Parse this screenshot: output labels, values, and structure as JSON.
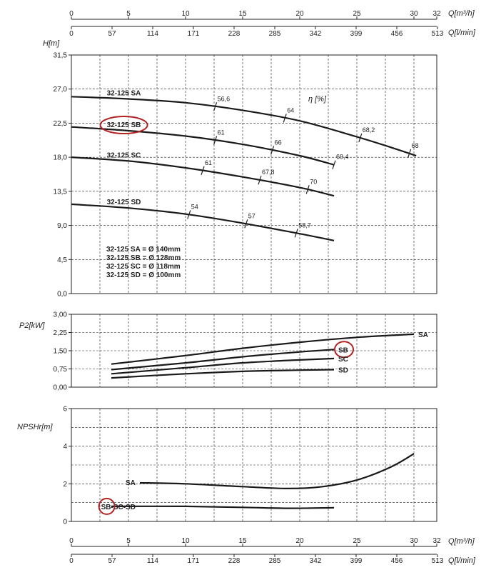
{
  "chart_data": {
    "type": "line",
    "axes": {
      "q_m3h": {
        "label": "Q[m³/h]",
        "ticks": [
          "0",
          "5",
          "10",
          "15",
          "20",
          "25",
          "30",
          "32"
        ]
      },
      "q_lmin": {
        "label": "Q[l/min]",
        "ticks": [
          "0",
          "57",
          "114",
          "171",
          "228",
          "285",
          "342",
          "399",
          "456",
          "513"
        ]
      }
    },
    "charts": [
      {
        "id": "head",
        "type": "line",
        "ylabel": "H[m]",
        "ylim": [
          0,
          31.5
        ],
        "yticks": [
          "0,0",
          "4,5",
          "9,0",
          "13,5",
          "18,0",
          "22,5",
          "27,0",
          "31,5"
        ],
        "eta_label": "η [%]",
        "legend": [
          "32-125 SA = Ø 140mm",
          "32-125 SB = Ø 128mm",
          "32-125 SC = Ø 118mm",
          "32-125 SD = Ø 100mm"
        ],
        "series": [
          {
            "name": "32-125 SA",
            "x": [
              0,
              5,
              10,
              15,
              20,
              25,
              28,
              30.2
            ],
            "y": [
              26.0,
              25.7,
              25.2,
              24.2,
              22.8,
              20.7,
              19.3,
              18.2
            ],
            "efficiency": [
              {
                "q": 12.6,
                "label": "56,6"
              },
              {
                "q": 18.7,
                "label": "64"
              },
              {
                "q": 25.3,
                "label": "68,2"
              },
              {
                "q": 29.6,
                "label": "68"
              }
            ],
            "highlighted": false
          },
          {
            "name": "32-125 SB",
            "x": [
              0,
              5,
              10,
              15,
              20,
              23
            ],
            "y": [
              22.0,
              21.5,
              20.8,
              19.7,
              18.2,
              17.0
            ],
            "efficiency": [
              {
                "q": 12.6,
                "label": "61"
              },
              {
                "q": 17.6,
                "label": "66"
              },
              {
                "q": 23.0,
                "label": "69,4"
              }
            ],
            "highlighted": true
          },
          {
            "name": "32-125 SC",
            "x": [
              0,
              5,
              10,
              15,
              20,
              23
            ],
            "y": [
              18.0,
              17.5,
              16.6,
              15.4,
              14.0,
              12.9
            ],
            "efficiency": [
              {
                "q": 11.5,
                "label": "61"
              },
              {
                "q": 16.5,
                "label": "67,8"
              },
              {
                "q": 20.7,
                "label": "70"
              }
            ],
            "highlighted": false
          },
          {
            "name": "32-125 SD",
            "x": [
              0,
              5,
              10,
              15,
              20,
              23
            ],
            "y": [
              11.8,
              11.3,
              10.5,
              9.3,
              7.9,
              7.0
            ],
            "efficiency": [
              {
                "q": 10.3,
                "label": "54"
              },
              {
                "q": 15.3,
                "label": "57"
              },
              {
                "q": 19.7,
                "label": "58,7"
              }
            ],
            "highlighted": false
          }
        ]
      },
      {
        "id": "power",
        "type": "line",
        "ylabel": "P2[kW]",
        "ylim": [
          0,
          3.0
        ],
        "yticks": [
          "0,00",
          "0,75",
          "1,50",
          "2,25",
          "3,00"
        ],
        "series": [
          {
            "name": "SA",
            "x": [
              3.5,
              10,
              15,
              20,
              25,
              30
            ],
            "y": [
              0.95,
              1.3,
              1.6,
              1.85,
              2.05,
              2.18
            ],
            "highlighted": false
          },
          {
            "name": "SB",
            "x": [
              3.5,
              10,
              15,
              20,
              23
            ],
            "y": [
              0.72,
              1.0,
              1.25,
              1.45,
              1.55
            ],
            "highlighted": true
          },
          {
            "name": "SC",
            "x": [
              3.5,
              10,
              15,
              20,
              23
            ],
            "y": [
              0.55,
              0.8,
              1.0,
              1.12,
              1.18
            ],
            "highlighted": false
          },
          {
            "name": "SD",
            "x": [
              3.5,
              10,
              15,
              20,
              23
            ],
            "y": [
              0.38,
              0.55,
              0.65,
              0.7,
              0.72
            ],
            "highlighted": false
          }
        ]
      },
      {
        "id": "npsh",
        "type": "line",
        "ylabel": "NPSHr[m]",
        "ylim": [
          0,
          6
        ],
        "yticks": [
          "0",
          "2",
          "4",
          "6"
        ],
        "series": [
          {
            "name": "SA",
            "x": [
              6,
              10,
              15,
              19,
              22,
              25,
              28,
              30
            ],
            "y": [
              2.05,
              2.0,
              1.85,
              1.75,
              1.85,
              2.2,
              2.9,
              3.6
            ],
            "highlighted": false
          },
          {
            "name": "SB-SC-SD",
            "x": [
              3.5,
              10,
              15,
              19,
              23
            ],
            "y": [
              0.8,
              0.8,
              0.75,
              0.7,
              0.73
            ],
            "highlighted": true
          }
        ]
      }
    ]
  }
}
